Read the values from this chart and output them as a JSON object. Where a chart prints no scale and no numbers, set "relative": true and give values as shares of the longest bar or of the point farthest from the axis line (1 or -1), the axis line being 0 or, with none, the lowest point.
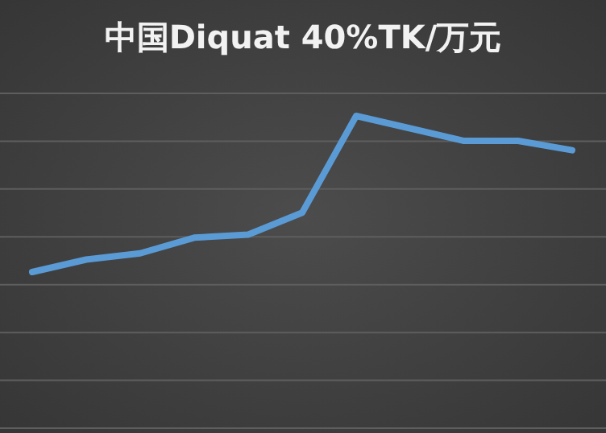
{
  "chart_data": {
    "type": "line",
    "title": "中国Diquat 40%TK/万元",
    "relative": true,
    "grid": true,
    "categories": [
      null,
      null,
      null,
      null,
      null,
      null,
      null,
      null,
      null,
      null,
      null
    ],
    "series": [
      {
        "color": "#5b9bd5",
        "values": [
          0.5,
          0.54,
          0.56,
          0.61,
          0.62,
          0.69,
          1,
          0.96,
          0.92,
          0.92,
          0.89
        ]
      }
    ]
  }
}
